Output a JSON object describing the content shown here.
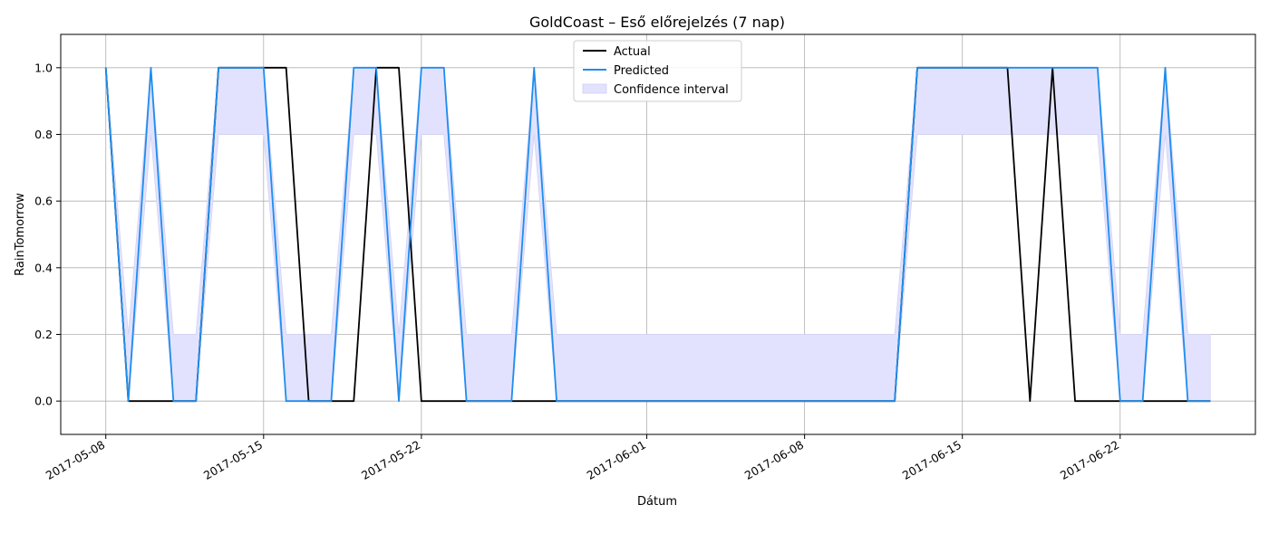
{
  "chart_data": {
    "type": "line",
    "title": "GoldCoast – Eső előrejelzés (7 nap)",
    "xlabel": "Dátum",
    "ylabel": "RainTomorrow",
    "x_start": "2017-05-08",
    "x_end": "2017-06-26",
    "xlim": [
      "2017-05-06",
      "2017-06-28"
    ],
    "ylim": [
      -0.1,
      1.1
    ],
    "x_ticks": [
      "2017-05-08",
      "2017-05-15",
      "2017-05-22",
      "2017-06-01",
      "2017-06-08",
      "2017-06-15",
      "2017-06-22"
    ],
    "y_ticks": [
      "0.0",
      "0.2",
      "0.4",
      "0.6",
      "0.8",
      "1.0"
    ],
    "grid": true,
    "legend_position": "top-center",
    "series": [
      {
        "name": "Actual",
        "color": "#000000",
        "values": [
          1,
          0,
          0,
          0,
          0,
          1,
          1,
          1,
          1,
          0,
          0,
          0,
          1,
          1,
          0,
          0,
          0,
          0,
          0,
          0,
          0,
          0,
          0,
          0,
          0,
          0,
          0,
          0,
          0,
          0,
          0,
          0,
          0,
          0,
          0,
          0,
          1,
          1,
          1,
          1,
          1,
          0,
          1,
          0,
          0,
          0,
          0,
          0,
          0,
          0
        ]
      },
      {
        "name": "Predicted",
        "color": "#1f8ded",
        "values": [
          1,
          0,
          1,
          0,
          0,
          1,
          1,
          1,
          0,
          0,
          0,
          1,
          1,
          0,
          1,
          1,
          0,
          0,
          0,
          1,
          0,
          0,
          0,
          0,
          0,
          0,
          0,
          0,
          0,
          0,
          0,
          0,
          0,
          0,
          0,
          0,
          1,
          1,
          1,
          1,
          1,
          1,
          1,
          1,
          1,
          0,
          0,
          1,
          0,
          0
        ]
      }
    ],
    "band": {
      "name": "Confidence interval",
      "color": "#e2e2ff",
      "lower": [
        1,
        0,
        0.8,
        0,
        0,
        0.8,
        0.8,
        0.8,
        0,
        0,
        0,
        0.8,
        0.8,
        0,
        0.8,
        0.8,
        0,
        0,
        0,
        0.8,
        0,
        0,
        0,
        0,
        0,
        0,
        0,
        0,
        0,
        0,
        0,
        0,
        0,
        0,
        0,
        0,
        0.8,
        0.8,
        0.8,
        0.8,
        0.8,
        0.8,
        0.8,
        0.8,
        0.8,
        0,
        0,
        0.8,
        0,
        0
      ],
      "upper": [
        1,
        0.2,
        1,
        0.2,
        0.2,
        1,
        1,
        1,
        0.2,
        0.2,
        0.2,
        1,
        1,
        0.2,
        1,
        1,
        0.2,
        0.2,
        0.2,
        1,
        0.2,
        0.2,
        0.2,
        0.2,
        0.2,
        0.2,
        0.2,
        0.2,
        0.2,
        0.2,
        0.2,
        0.2,
        0.2,
        0.2,
        0.2,
        0.2,
        1,
        1,
        1,
        1,
        1,
        1,
        1,
        1,
        1,
        0.2,
        0.2,
        1,
        0.2,
        0.2
      ]
    }
  }
}
